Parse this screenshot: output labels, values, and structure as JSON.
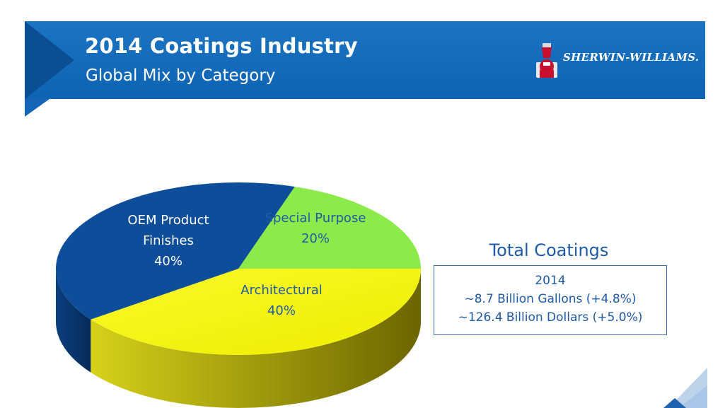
{
  "header": {
    "title": "2014 Coatings Industry",
    "subtitle": "Global Mix by Category",
    "logo_text": "SHERWIN-WILLIAMS.",
    "logo_icon": "cover-the-earth-logo-icon",
    "background_color": "#1468b8"
  },
  "chart_data": {
    "type": "pie",
    "title": "",
    "slices": [
      {
        "label_lines": [
          "OEM Product",
          "Finishes",
          "40%"
        ],
        "value": 40,
        "color": "#0d4d9a",
        "side_color": "#0a3c78",
        "text_color": "#ffffff"
      },
      {
        "label_lines": [
          "Special Purpose",
          "20%"
        ],
        "value": 20,
        "color": "#8cea4a",
        "side_color": "#6fc233",
        "text_color": "#1f5aa6"
      },
      {
        "label_lines": [
          "Architectural",
          "40%"
        ],
        "value": 40,
        "color": "#f5f50a",
        "side_color": "#c9c400",
        "text_color": "#1f5aa6"
      }
    ],
    "style": "3d"
  },
  "totals": {
    "title": "Total Coatings",
    "lines": [
      "2014",
      "~8.7 Billion Gallons (+4.8%)",
      "~126.4 Billion Dollars (+5.0%)"
    ]
  }
}
